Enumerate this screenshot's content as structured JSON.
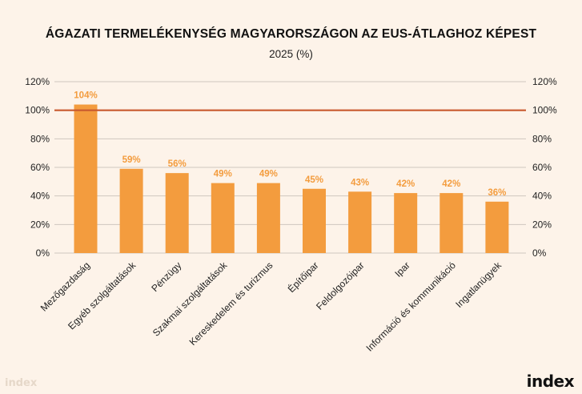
{
  "chart_data": {
    "type": "bar",
    "title": "ÁGAZATI TERMELÉKENYSÉG MAGYARORSZÁGON AZ EUS-ÁTLAGHOZ KÉPEST",
    "subtitle": "2025 (%)",
    "categories": [
      "Mezőgazdaság",
      "Egyéb szolgáltatások",
      "Pénzügy",
      "Szakmai szolgáltatások",
      "Kereskedelem és turizmus",
      "Építőipar",
      "Feldolgozóipar",
      "Ipar",
      "Információ és kommunikáció",
      "Ingatlanügyek"
    ],
    "values": [
      104,
      59,
      56,
      49,
      49,
      45,
      43,
      42,
      42,
      36
    ],
    "data_labels": [
      "104%",
      "59%",
      "56%",
      "49%",
      "49%",
      "45%",
      "43%",
      "42%",
      "42%",
      "36%"
    ],
    "ylim": [
      0,
      120
    ],
    "yticks": [
      0,
      20,
      40,
      60,
      80,
      100,
      120
    ],
    "ytick_labels": [
      "0%",
      "20%",
      "40%",
      "60%",
      "80%",
      "100%",
      "120%"
    ],
    "reference_line": 100,
    "grid": true,
    "axes": "left-and-right",
    "colors": {
      "bar": "#f39c3e",
      "label": "#f39c3e",
      "reference": "#c8592e",
      "grid": "#cfc7bf",
      "background": "#fdf3e9"
    }
  },
  "watermark": "index",
  "logo": "index"
}
